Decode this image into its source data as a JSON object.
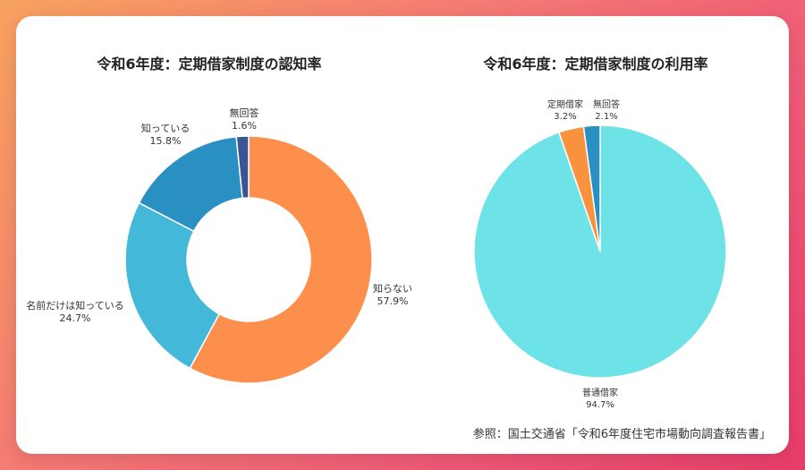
{
  "source_note": "参照：国土交通省「令和6年度住宅市場動向調査報告書」",
  "colors": {
    "orange": "#fd8f4d",
    "light_blue": "#43b8d8",
    "mid_blue": "#2a8fc1",
    "dark_blue": "#3a5593",
    "cyan": "#6de3e8",
    "pie_orange": "#f8923f",
    "pie_blue": "#2a8fc1"
  },
  "chart_data": [
    {
      "type": "pie",
      "variant": "donut",
      "title": "令和6年度：定期借家制度の認知率",
      "slices": [
        {
          "label": "知らない",
          "value": 57.9,
          "value_label": "57.9%",
          "color": "#fd8f4d"
        },
        {
          "label": "名前だけは知っている",
          "value": 24.7,
          "value_label": "24.7%",
          "color": "#43b8d8"
        },
        {
          "label": "知っている",
          "value": 15.8,
          "value_label": "15.8%",
          "color": "#2a8fc1"
        },
        {
          "label": "無回答",
          "value": 1.6,
          "value_label": "1.6%",
          "color": "#3a5593"
        }
      ]
    },
    {
      "type": "pie",
      "title": "令和6年度：定期借家制度の利用率",
      "slices": [
        {
          "label": "普通借家",
          "value": 94.7,
          "value_label": "94.7%",
          "color": "#6de3e8"
        },
        {
          "label": "定期借家",
          "value": 3.2,
          "value_label": "3.2%",
          "color": "#f8923f"
        },
        {
          "label": "無回答",
          "value": 2.1,
          "value_label": "2.1%",
          "color": "#2a8fc1"
        }
      ]
    }
  ]
}
